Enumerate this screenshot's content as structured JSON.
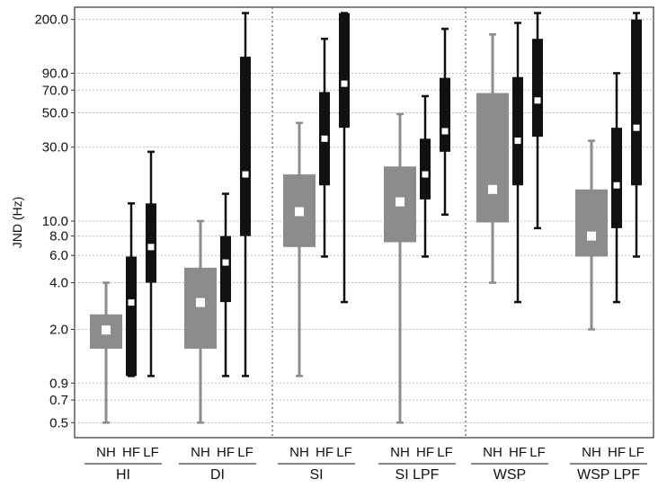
{
  "colors": {
    "nh_box": "#8c8c8c",
    "hf_lf_box": "#111111",
    "median_marker": "#ffffff",
    "grid": "#b0b0b0",
    "axis": "#333333"
  },
  "chart_data": {
    "type": "box",
    "title": "",
    "xlabel": "",
    "ylabel": "JND (Hz)",
    "yscale": "log",
    "ylim": [
      0.4,
      240
    ],
    "yticks": [
      {
        "value": 0.5,
        "label": "0.5"
      },
      {
        "value": 0.7,
        "label": "0.7"
      },
      {
        "value": 0.9,
        "label": "0.9"
      },
      {
        "value": 2.0,
        "label": "2.0"
      },
      {
        "value": 4.0,
        "label": "4.0"
      },
      {
        "value": 6.0,
        "label": "6.0"
      },
      {
        "value": 8.0,
        "label": "8.0"
      },
      {
        "value": 10.0,
        "label": "10.0"
      },
      {
        "value": 30.0,
        "label": "30.0"
      },
      {
        "value": 50.0,
        "label": "50.0"
      },
      {
        "value": 70.0,
        "label": "70.0"
      },
      {
        "value": 90.0,
        "label": "90.0"
      },
      {
        "value": 200.0,
        "label": "200.0"
      }
    ],
    "grid": true,
    "panels": [
      {
        "groups": [
          {
            "label": "HI",
            "boxes": [
              {
                "label": "NH",
                "min": 0.5,
                "q1": 1.5,
                "median": 1.98,
                "q3": 2.5,
                "max": 4.0
              },
              {
                "label": "HF",
                "min": 1.0,
                "q1": 1.0,
                "median": 2.98,
                "q3": 5.9,
                "max": 13.0
              },
              {
                "label": "LF",
                "min": 1.0,
                "q1": 4.0,
                "median": 6.8,
                "q3": 13.0,
                "max": 28.0
              }
            ]
          },
          {
            "label": "DI",
            "boxes": [
              {
                "label": "NH",
                "min": 0.5,
                "q1": 1.5,
                "median": 2.98,
                "q3": 5.0,
                "max": 10.0
              },
              {
                "label": "HF",
                "min": 1.0,
                "q1": 3.0,
                "median": 5.4,
                "q3": 8.0,
                "max": 15.0
              },
              {
                "label": "LF",
                "min": 1.0,
                "q1": 8.0,
                "median": 20.0,
                "q3": 115.0,
                "max": 220.0
              }
            ]
          }
        ]
      },
      {
        "groups": [
          {
            "label": "SI",
            "boxes": [
              {
                "label": "NH",
                "min": 1.0,
                "q1": 6.8,
                "median": 11.5,
                "q3": 20.0,
                "max": 43.0
              },
              {
                "label": "HF",
                "min": 5.9,
                "q1": 17.0,
                "median": 34.0,
                "q3": 68.0,
                "max": 150.0
              },
              {
                "label": "LF",
                "min": 3.0,
                "q1": 40.0,
                "median": 77.0,
                "q3": 220.0,
                "max": 220.0
              }
            ]
          },
          {
            "label": "SI LPF",
            "boxes": [
              {
                "label": "NH",
                "min": 0.5,
                "q1": 7.3,
                "median": 13.3,
                "q3": 22.5,
                "max": 49.0
              },
              {
                "label": "HF",
                "min": 5.9,
                "q1": 13.8,
                "median": 20.0,
                "q3": 34.0,
                "max": 64.0
              },
              {
                "label": "LF",
                "min": 11.0,
                "q1": 28.0,
                "median": 38.0,
                "q3": 84.0,
                "max": 174.0
              }
            ]
          }
        ]
      },
      {
        "groups": [
          {
            "label": "WSP",
            "boxes": [
              {
                "label": "NH",
                "min": 4.0,
                "q1": 9.8,
                "median": 16.0,
                "q3": 67.0,
                "max": 160.0
              },
              {
                "label": "HF",
                "min": 3.0,
                "q1": 17.0,
                "median": 33.0,
                "q3": 85.0,
                "max": 190.0
              },
              {
                "label": "LF",
                "min": 9.0,
                "q1": 35.0,
                "median": 60.0,
                "q3": 150.0,
                "max": 220.0
              }
            ]
          },
          {
            "label": "WSP LPF",
            "boxes": [
              {
                "label": "NH",
                "min": 2.0,
                "q1": 5.9,
                "median": 8.0,
                "q3": 16.0,
                "max": 33.0
              },
              {
                "label": "HF",
                "min": 3.0,
                "q1": 9.0,
                "median": 17.0,
                "q3": 40.0,
                "max": 90.0
              },
              {
                "label": "LF",
                "min": 5.9,
                "q1": 17.0,
                "median": 40.0,
                "q3": 200.0,
                "max": 220.0
              }
            ]
          }
        ]
      }
    ]
  }
}
